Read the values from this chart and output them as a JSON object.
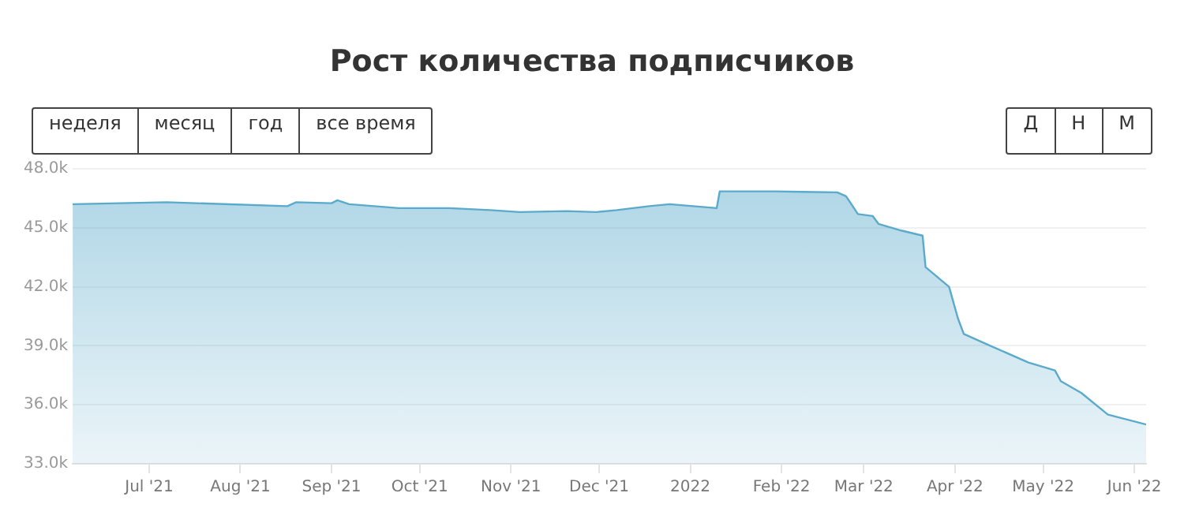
{
  "chart_data": {
    "type": "area",
    "title": "Рост количества подписчиков",
    "annotations": [
      "неделя",
      "месяц",
      "год",
      "все время",
      "Д",
      "Н",
      "М"
    ],
    "x": [
      "2021-06-05",
      "2021-07-07",
      "2021-08-17",
      "2021-08-20",
      "2021-09-01",
      "2021-09-03",
      "2021-09-07",
      "2021-09-24",
      "2021-10-11",
      "2021-10-25",
      "2021-11-04",
      "2021-11-20",
      "2021-11-30",
      "2021-12-07",
      "2021-12-18",
      "2021-12-25",
      "2022-01-10",
      "2022-01-11",
      "2022-01-30",
      "2022-02-20",
      "2022-02-23",
      "2022-02-27",
      "2022-03-04",
      "2022-03-06",
      "2022-03-14",
      "2022-03-21",
      "2022-03-22",
      "2022-03-30",
      "2022-04-02",
      "2022-04-04",
      "2022-04-13",
      "2022-04-26",
      "2022-05-05",
      "2022-05-07",
      "2022-05-14",
      "2022-05-23",
      "2022-06-05"
    ],
    "series": [
      {
        "color": "#5aaacb",
        "values": [
          46.2,
          46.3,
          46.1,
          46.3,
          46.25,
          46.4,
          46.2,
          46.0,
          46.0,
          45.9,
          45.8,
          45.85,
          45.8,
          45.9,
          46.1,
          46.2,
          46.0,
          46.85,
          46.85,
          46.8,
          46.6,
          45.7,
          45.6,
          45.2,
          44.85,
          44.6,
          43.0,
          42.0,
          40.4,
          39.6,
          39.0,
          38.15,
          37.75,
          37.2,
          36.6,
          35.5,
          35.0
        ]
      }
    ],
    "xlim": [
      "2021-06-05",
      "2022-06-05"
    ],
    "xticks": [
      {
        "value": "2021-07-01",
        "label": "Jul '21"
      },
      {
        "value": "2021-08-01",
        "label": "Aug '21"
      },
      {
        "value": "2021-09-01",
        "label": "Sep '21"
      },
      {
        "value": "2021-10-01",
        "label": "Oct '21"
      },
      {
        "value": "2021-11-01",
        "label": "Nov '21"
      },
      {
        "value": "2021-12-01",
        "label": "Dec '21"
      },
      {
        "value": "2022-01-01",
        "label": "2022"
      },
      {
        "value": "2022-02-01",
        "label": "Feb '22"
      },
      {
        "value": "2022-03-01",
        "label": "Mar '22"
      },
      {
        "value": "2022-04-01",
        "label": "Apr '22"
      },
      {
        "value": "2022-05-01",
        "label": "May '22"
      },
      {
        "value": "2022-06-01",
        "label": "Jun '22"
      }
    ],
    "ylim": [
      33,
      48
    ],
    "yticks": [
      {
        "value": 33,
        "label": "33.0k"
      },
      {
        "value": 36,
        "label": "36.0k"
      },
      {
        "value": 39,
        "label": "39.0k"
      },
      {
        "value": 42,
        "label": "42.0k"
      },
      {
        "value": 45,
        "label": "45.0k"
      },
      {
        "value": 48,
        "label": "48.0k"
      }
    ],
    "grid": "y",
    "legend": false,
    "marker": "none",
    "line_style": "solid"
  }
}
